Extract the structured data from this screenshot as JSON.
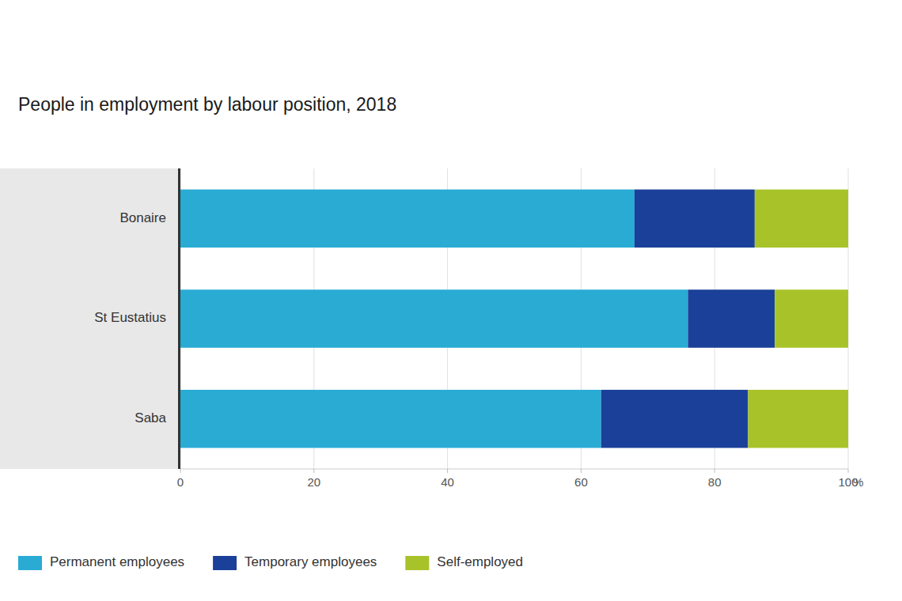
{
  "chart_data": {
    "type": "bar",
    "title": "People in employment by labour position, 2018",
    "orientation": "horizontal",
    "stacked": true,
    "grid": true,
    "legend": "bottom-left",
    "categories": [
      "Saba",
      "St Eustatius",
      "Bonaire"
    ],
    "series": [
      {
        "name": "Permanent employees",
        "color": "#29ABD4",
        "values": [
          63,
          76,
          68
        ]
      },
      {
        "name": "Temporary employees",
        "color": "#1A4099",
        "values": [
          22,
          13,
          18
        ]
      },
      {
        "name": "Self-employed",
        "color": "#A8C32A",
        "values": [
          15,
          11,
          14
        ]
      }
    ],
    "xlabel": "%",
    "xlim": [
      0,
      100
    ],
    "xticks": [
      0,
      20,
      40,
      60,
      80,
      100
    ]
  }
}
